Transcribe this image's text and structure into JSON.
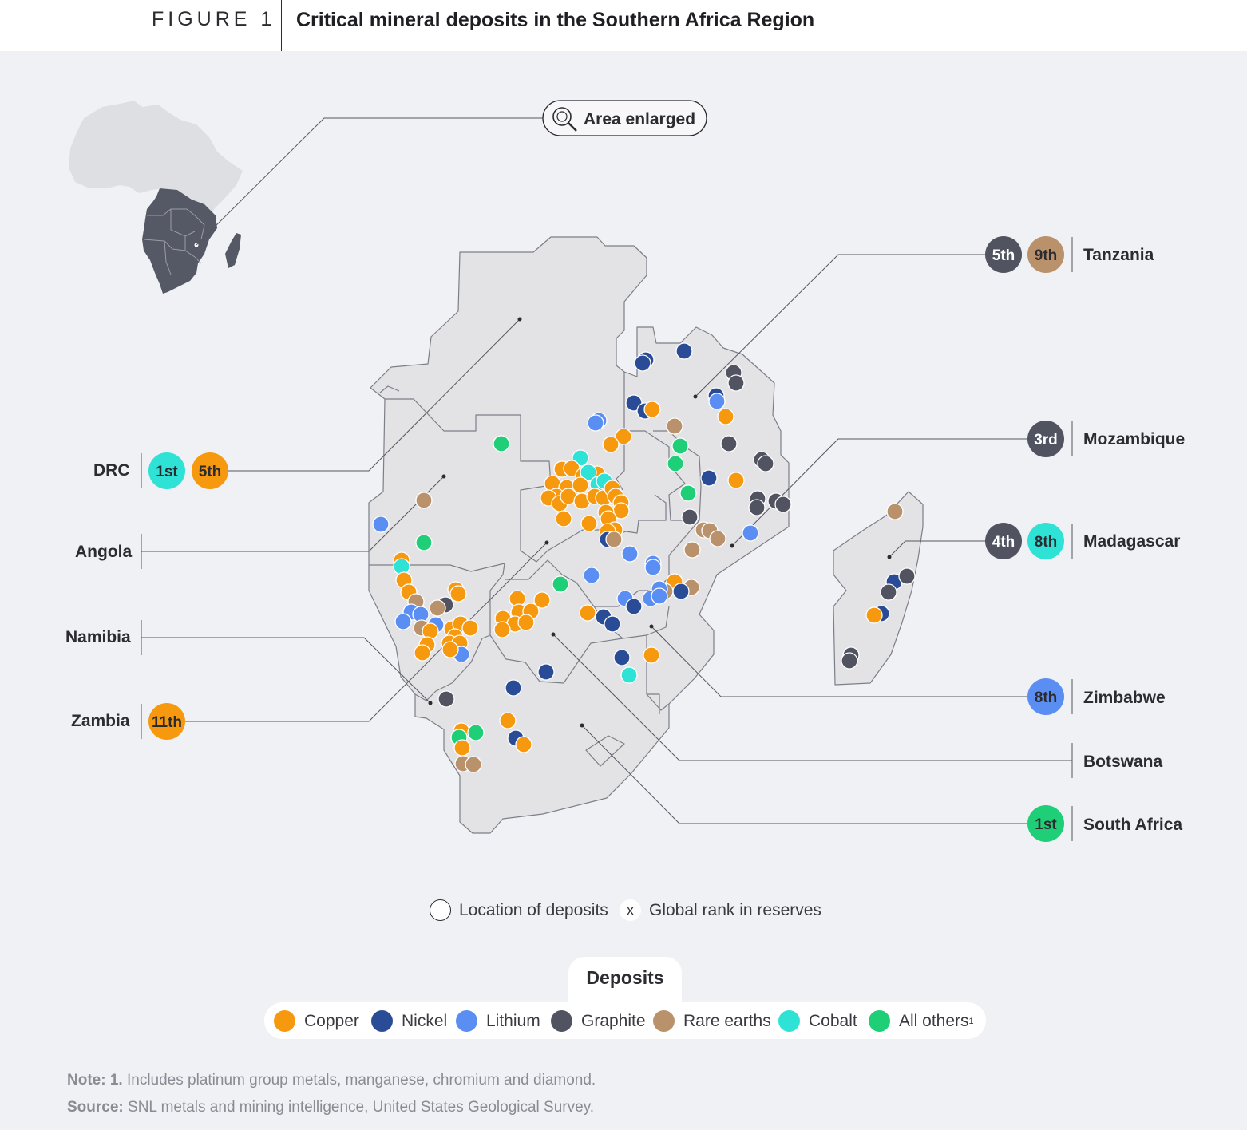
{
  "header": {
    "figure_label": "FIGURE 1",
    "title": "Critical mineral deposits in the Southern Africa Region"
  },
  "inset": {
    "label": "Area enlarged",
    "icon": "magnifier-icon"
  },
  "colors": {
    "copper": "#f7990f",
    "nickel": "#2a4b95",
    "lithium": "#5a8ef2",
    "graphite": "#515460",
    "rare_earths": "#b9916b",
    "cobalt": "#2fe2d6",
    "all_others": "#1ecf78",
    "land": "#e3e3e6",
    "border": "#7d7f88"
  },
  "countries": [
    {
      "name": "DRC",
      "ranks": [
        {
          "text": "1st",
          "mineral": "cobalt"
        },
        {
          "text": "5th",
          "mineral": "copper"
        }
      ]
    },
    {
      "name": "Angola",
      "ranks": []
    },
    {
      "name": "Namibia",
      "ranks": []
    },
    {
      "name": "Zambia",
      "ranks": [
        {
          "text": "11th",
          "mineral": "copper"
        }
      ]
    },
    {
      "name": "Tanzania",
      "ranks": [
        {
          "text": "5th",
          "mineral": "graphite"
        },
        {
          "text": "9th",
          "mineral": "rare_earths"
        }
      ]
    },
    {
      "name": "Mozambique",
      "ranks": [
        {
          "text": "3rd",
          "mineral": "graphite"
        }
      ]
    },
    {
      "name": "Madagascar",
      "ranks": [
        {
          "text": "4th",
          "mineral": "graphite"
        },
        {
          "text": "8th",
          "mineral": "cobalt"
        }
      ]
    },
    {
      "name": "Zimbabwe",
      "ranks": [
        {
          "text": "8th",
          "mineral": "lithium"
        }
      ]
    },
    {
      "name": "Botswana",
      "ranks": []
    },
    {
      "name": "South Africa",
      "ranks": [
        {
          "text": "1st",
          "mineral": "all_others"
        }
      ]
    }
  ],
  "key": {
    "location_label": "Location of deposits",
    "rank_symbol": "x",
    "rank_label": "Global rank in reserves"
  },
  "legend": {
    "title": "Deposits",
    "items": [
      {
        "label": "Copper",
        "mineral": "copper"
      },
      {
        "label": "Nickel",
        "mineral": "nickel"
      },
      {
        "label": "Lithium",
        "mineral": "lithium"
      },
      {
        "label": "Graphite",
        "mineral": "graphite"
      },
      {
        "label": "Rare earths",
        "mineral": "rare_earths"
      },
      {
        "label": "Cobalt",
        "mineral": "cobalt"
      },
      {
        "label": "All others",
        "mineral": "all_others",
        "footnote": "1"
      }
    ]
  },
  "notes": {
    "note_label": "Note:",
    "note_num": "1.",
    "note_text": "Includes platinum group metals, manganese, chromium and diamond.",
    "source_label": "Source:",
    "source_text": "SNL metals and mining intelligence, United States Geological Survey."
  }
}
